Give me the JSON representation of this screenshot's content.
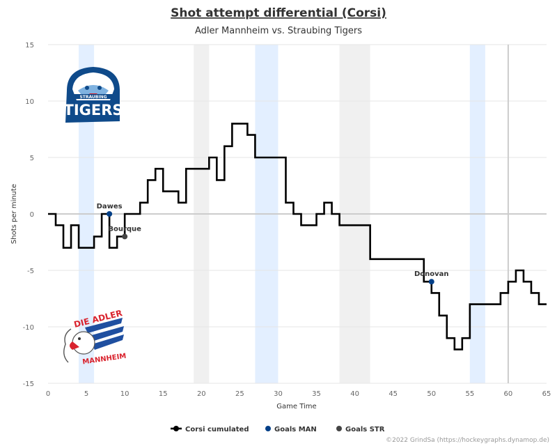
{
  "chart_data": {
    "type": "line",
    "title": "Shot attempt differential (Corsi)",
    "subtitle": "Adler Mannheim vs. Straubing Tigers",
    "xlabel": "Game Time",
    "ylabel": "Shots per minute",
    "xlim": [
      0,
      65
    ],
    "ylim": [
      -15,
      15
    ],
    "x_ticks": [
      0,
      5,
      10,
      15,
      20,
      25,
      30,
      35,
      40,
      45,
      50,
      55,
      60,
      65
    ],
    "y_ticks": [
      15,
      10,
      5,
      0,
      -5,
      -10,
      -15
    ],
    "grid": true,
    "legend_position": "bottom-center",
    "series": [
      {
        "name": "Corsi cumulated",
        "color": "#000000",
        "step": true,
        "x": [
          0,
          1,
          2,
          3,
          4,
          5,
          6,
          7,
          8,
          9,
          10,
          11,
          12,
          13,
          14,
          15,
          16,
          17,
          18,
          19,
          20,
          21,
          22,
          23,
          24,
          25,
          26,
          27,
          28,
          29,
          30,
          31,
          32,
          33,
          34,
          35,
          36,
          37,
          38,
          39,
          40,
          41,
          42,
          43,
          44,
          45,
          46,
          47,
          48,
          49,
          50,
          51,
          52,
          53,
          54,
          55,
          56,
          57,
          58,
          59,
          60,
          61,
          62,
          63,
          64,
          65
        ],
        "y": [
          0,
          -1,
          -3,
          -1,
          -3,
          -3,
          -2,
          0,
          -3,
          -2,
          0,
          0,
          1,
          3,
          4,
          2,
          2,
          1,
          4,
          4,
          4,
          5,
          3,
          6,
          8,
          8,
          7,
          5,
          5,
          5,
          5,
          1,
          0,
          -1,
          -1,
          0,
          1,
          0,
          -1,
          -1,
          -1,
          -1,
          -4,
          -4,
          -4,
          -4,
          -4,
          -4,
          -4,
          -6,
          -7,
          -9,
          -11,
          -12,
          -11,
          -8,
          -8,
          -8,
          -8,
          -7,
          -6,
          -5,
          -6,
          -7,
          -8,
          -8
        ]
      }
    ],
    "goals": [
      {
        "team": "MAN",
        "player": "Dawes",
        "x": 8,
        "y": 0
      },
      {
        "team": "STR",
        "player": "Bourque",
        "x": 10,
        "y": -2
      },
      {
        "team": "MAN",
        "player": "Donovan",
        "x": 50,
        "y": -6
      }
    ],
    "legend": [
      {
        "label": "Corsi cumulated",
        "color": "#000000",
        "kind": "line"
      },
      {
        "label": "Goals MAN",
        "color": "#023f87",
        "kind": "dot"
      },
      {
        "label": "Goals STR",
        "color": "#444444",
        "kind": "dot"
      }
    ],
    "powerplay_bands": [
      {
        "from": 4,
        "to": 6,
        "team": "MAN",
        "color": "#e3efff"
      },
      {
        "from": 19,
        "to": 21,
        "team": "STR",
        "color": "#f0f0f0"
      },
      {
        "from": 27,
        "to": 30,
        "team": "MAN",
        "color": "#e3efff"
      },
      {
        "from": 38,
        "to": 42,
        "team": "STR",
        "color": "#f0f0f0"
      },
      {
        "from": 55,
        "to": 57,
        "team": "MAN",
        "color": "#e3efff"
      }
    ],
    "period_end_line": 60
  },
  "logos": {
    "top": {
      "line1": "STRAUBING",
      "line2": "TIGERS",
      "color": "#0f4a8a"
    },
    "bottom": {
      "line1": "DIE ADLER",
      "line2": "MANNHEIM",
      "color": "#d9232e",
      "accent": "#1f4fa0"
    }
  },
  "credits": "©2022 GrindSa (https://hockeygraphs.dynamop.de)"
}
